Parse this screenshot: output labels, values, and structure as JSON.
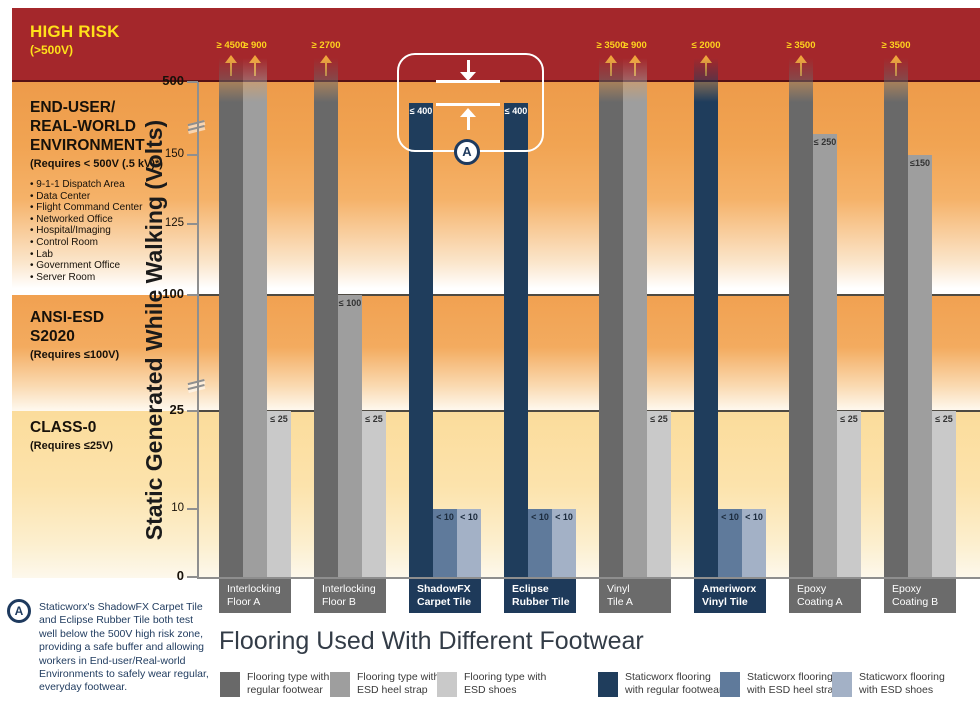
{
  "chart_data": {
    "type": "bar",
    "title": "Flooring Used With Different Footwear",
    "ylabel": "Static Generated While Walking (Volts)",
    "y_ticks": [
      {
        "value": 0,
        "bold": true
      },
      {
        "value": 10,
        "bold": false
      },
      {
        "value": 25,
        "bold": true
      },
      {
        "value": 100,
        "bold": true
      },
      {
        "value": 125,
        "bold": false
      },
      {
        "value": 150,
        "bold": false
      },
      {
        "value": 500,
        "bold": true
      }
    ],
    "y_axis_breaks": [
      "between 25 and 100",
      "between 150 and 500"
    ],
    "zones": [
      {
        "title_lines": [
          "HIGH RISK"
        ],
        "requirement": "(>500V)"
      },
      {
        "title_lines": [
          "END-USER/",
          "REAL-WORLD",
          "ENVIRONMENT"
        ],
        "requirement": "(Requires < 500V (.5 kV)*)",
        "examples": [
          "9-1-1 Dispatch Area",
          "Data Center",
          "Flight Command Center",
          "Networked Office",
          "Hospital/Imaging",
          "Control Room",
          "Lab",
          "Government Office",
          "Server Room"
        ]
      },
      {
        "title_lines": [
          "ANSI-ESD",
          "S2020"
        ],
        "requirement": "(Requires ≤100V)"
      },
      {
        "title_lines": [
          "CLASS-0"
        ],
        "requirement": "(Requires ≤25V)"
      }
    ],
    "footwear_series": [
      "regular footwear",
      "ESD heel strap",
      "ESD shoes"
    ],
    "colors": {
      "flooring_palette": [
        "#696969",
        "#9E9E9E",
        "#C9C9C9"
      ],
      "staticworx_palette": [
        "#1F3D5C",
        "#5F7A9B",
        "#A3B1C6"
      ],
      "high_risk_band": "#A4272B",
      "offscale_label": "#FFD41E",
      "offscale_arrow": "#F0A43C",
      "navy_text": "#1E3A5E"
    },
    "groups": [
      {
        "name_lines": [
          "Interlocking",
          "Floor A"
        ],
        "staticworx": false,
        "bars": [
          {
            "display": "≥ 4500",
            "value": 4500,
            "offscale": true
          },
          {
            "display": "≥ 900",
            "value": 900,
            "offscale": true
          },
          {
            "display": "≤ 25",
            "value": 25,
            "offscale": false
          }
        ]
      },
      {
        "name_lines": [
          "Interlocking",
          "Floor B"
        ],
        "staticworx": false,
        "bars": [
          {
            "display": "≥ 2700",
            "value": 2700,
            "offscale": true
          },
          {
            "display": "≤ 100",
            "value": 100,
            "offscale": false
          },
          {
            "display": "≤ 25",
            "value": 25,
            "offscale": false
          }
        ]
      },
      {
        "name_lines": [
          "ShadowFX",
          "Carpet Tile"
        ],
        "staticworx": true,
        "bars": [
          {
            "display": "≤ 400",
            "value": 400,
            "offscale": false
          },
          {
            "display": "< 10",
            "value": 10,
            "offscale": false
          },
          {
            "display": "< 10",
            "value": 10,
            "offscale": false
          }
        ]
      },
      {
        "name_lines": [
          "Eclipse",
          "Rubber Tile"
        ],
        "staticworx": true,
        "bars": [
          {
            "display": "≤ 400",
            "value": 400,
            "offscale": false
          },
          {
            "display": "< 10",
            "value": 10,
            "offscale": false
          },
          {
            "display": "< 10",
            "value": 10,
            "offscale": false
          }
        ]
      },
      {
        "name_lines": [
          "Vinyl",
          "Tile A"
        ],
        "staticworx": false,
        "bars": [
          {
            "display": "≥ 3500",
            "value": 3500,
            "offscale": true
          },
          {
            "display": "≥ 900",
            "value": 900,
            "offscale": true
          },
          {
            "display": "≤ 25",
            "value": 25,
            "offscale": false
          }
        ]
      },
      {
        "name_lines": [
          "Ameriworx",
          "Vinyl Tile"
        ],
        "staticworx": true,
        "bars": [
          {
            "display": "≤ 2000",
            "value": 2000,
            "offscale": true
          },
          {
            "display": "< 10",
            "value": 10,
            "offscale": false
          },
          {
            "display": "< 10",
            "value": 10,
            "offscale": false
          }
        ]
      },
      {
        "name_lines": [
          "Epoxy",
          "Coating A"
        ],
        "staticworx": false,
        "bars": [
          {
            "display": "≥ 3500",
            "value": 3500,
            "offscale": true
          },
          {
            "display": "≤ 250",
            "value": 250,
            "offscale": false
          },
          {
            "display": "≤ 25",
            "value": 25,
            "offscale": false
          }
        ]
      },
      {
        "name_lines": [
          "Epoxy",
          "Coating B"
        ],
        "staticworx": false,
        "bars": [
          {
            "display": "≥ 3500",
            "value": 3500,
            "offscale": true
          },
          {
            "display": "≤150",
            "value": 150,
            "offscale": false
          },
          {
            "display": "≤ 25",
            "value": 25,
            "offscale": false
          }
        ]
      }
    ],
    "callout": {
      "marker": "A",
      "upper_value": 500,
      "lower_value": 400
    },
    "legend": [
      {
        "lines": [
          "Flooring type with",
          "regular footwear"
        ]
      },
      {
        "lines": [
          "Flooring type with",
          "ESD heel strap"
        ]
      },
      {
        "lines": [
          "Flooring type with",
          "ESD shoes"
        ]
      },
      {
        "lines": [
          "Staticworx flooring",
          "with regular footwear"
        ]
      },
      {
        "lines": [
          "Staticworx flooring",
          "with ESD heel strap"
        ]
      },
      {
        "lines": [
          "Staticworx flooring",
          "with ESD shoes"
        ]
      }
    ]
  },
  "note": {
    "marker": "A",
    "text": "Staticworx's ShadowFX Carpet Tile and Eclipse Rubber Tile both test well below the 500V high risk zone, providing a safe buffer and allowing workers in End-user/Real-world Environments to safely wear regular, everyday footwear."
  }
}
